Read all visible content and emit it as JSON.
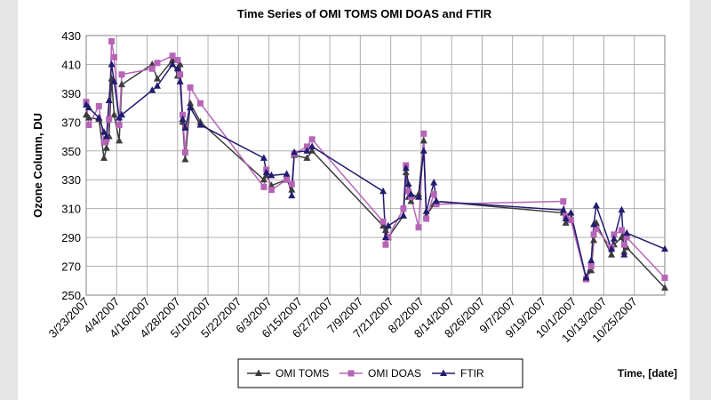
{
  "chart_data": {
    "type": "line",
    "title": "Time Series of OMI TOMS OMI DOAS and FTIR",
    "y_label": "Ozone Column, DU",
    "x_label": "Time, [date]",
    "x": [
      "2007-03-23",
      "2007-03-24",
      "2007-03-28",
      "2007-03-30",
      "2007-03-31",
      "2007-04-01",
      "2007-04-02",
      "2007-04-03",
      "2007-04-05",
      "2007-04-06",
      "2007-04-18",
      "2007-04-20",
      "2007-04-26",
      "2007-04-28",
      "2007-04-29",
      "2007-04-30",
      "2007-05-01",
      "2007-05-03",
      "2007-05-07",
      "2007-06-01",
      "2007-06-02",
      "2007-06-04",
      "2007-06-10",
      "2007-06-12",
      "2007-06-13",
      "2007-06-18",
      "2007-06-20",
      "2007-07-18",
      "2007-07-19",
      "2007-07-20",
      "2007-07-26",
      "2007-07-27",
      "2007-07-28",
      "2007-07-29",
      "2007-08-01",
      "2007-08-03",
      "2007-08-04",
      "2007-08-07",
      "2007-08-08",
      "2007-09-27",
      "2007-09-28",
      "2007-09-30",
      "2007-10-06",
      "2007-10-08",
      "2007-10-09",
      "2007-10-10",
      "2007-10-16",
      "2007-10-17",
      "2007-10-20",
      "2007-10-21",
      "2007-10-22",
      "2007-11-06"
    ],
    "series": [
      {
        "name": "OMI TOMS",
        "color": "#3c3c3c",
        "marker": "triangle",
        "values": [
          375,
          373,
          372,
          345,
          352,
          360,
          400,
          375,
          357,
          396,
          410,
          400,
          413,
          402,
          410,
          370,
          344,
          383,
          370,
          330,
          333,
          326,
          330,
          323,
          347,
          345,
          350,
          298,
          295,
          290,
          305,
          335,
          318,
          315,
          320,
          357,
          305,
          313,
          315,
          307,
          300,
          303,
          262,
          267,
          288,
          300,
          278,
          285,
          290,
          280,
          283,
          255
        ]
      },
      {
        "name": "OMI DOAS",
        "color": "#b665b6",
        "marker": "square",
        "values": [
          384,
          368,
          381,
          356,
          358,
          372,
          426,
          415,
          368,
          403,
          407,
          411,
          416,
          413,
          403,
          375,
          349,
          394,
          383,
          325,
          337,
          323,
          330,
          327,
          348,
          353,
          358,
          301,
          285,
          290,
          310,
          340,
          322,
          318,
          297,
          362,
          303,
          320,
          313,
          315,
          305,
          302,
          261,
          270,
          292,
          296,
          283,
          292,
          295,
          285,
          290,
          262
        ]
      },
      {
        "name": "FTIR",
        "color": "#221c70",
        "marker": "triangle",
        "values": [
          382,
          380,
          373,
          363,
          360,
          385,
          410,
          398,
          373,
          375,
          392,
          395,
          410,
          407,
          398,
          372,
          366,
          380,
          368,
          345,
          335,
          333,
          334,
          319,
          349,
          350,
          353,
          322,
          290,
          298,
          305,
          338,
          327,
          320,
          318,
          350,
          308,
          328,
          315,
          309,
          303,
          307,
          262,
          274,
          299,
          312,
          282,
          289,
          309,
          278,
          293,
          282
        ]
      }
    ],
    "xlim": [
      "2007-03-23",
      "2007-11-06"
    ],
    "xticks": [
      {
        "value": "2007-03-23",
        "label": "3/23/2007"
      },
      {
        "value": "2007-04-04",
        "label": "4/4/2007"
      },
      {
        "value": "2007-04-16",
        "label": "4/16/2007"
      },
      {
        "value": "2007-04-28",
        "label": "4/28/2007"
      },
      {
        "value": "2007-05-10",
        "label": "5/10/2007"
      },
      {
        "value": "2007-05-22",
        "label": "5/22/2007"
      },
      {
        "value": "2007-06-03",
        "label": "6/3/2007"
      },
      {
        "value": "2007-06-15",
        "label": "6/15/2007"
      },
      {
        "value": "2007-06-27",
        "label": "6/27/2007"
      },
      {
        "value": "2007-07-09",
        "label": "7/9/2007"
      },
      {
        "value": "2007-07-21",
        "label": "7/21/2007"
      },
      {
        "value": "2007-08-02",
        "label": "8/2/2007"
      },
      {
        "value": "2007-08-14",
        "label": "8/14/2007"
      },
      {
        "value": "2007-08-26",
        "label": "8/26/2007"
      },
      {
        "value": "2007-09-07",
        "label": "9/7/2007"
      },
      {
        "value": "2007-09-19",
        "label": "9/19/2007"
      },
      {
        "value": "2007-10-01",
        "label": "10/1/2007"
      },
      {
        "value": "2007-10-13",
        "label": "10/13/2007"
      },
      {
        "value": "2007-10-25",
        "label": "10/25/2007"
      }
    ],
    "ylim": [
      250,
      430
    ],
    "yticks": [
      250,
      270,
      290,
      310,
      330,
      350,
      370,
      390,
      410,
      430
    ],
    "grid": true,
    "legend": "bottom"
  }
}
